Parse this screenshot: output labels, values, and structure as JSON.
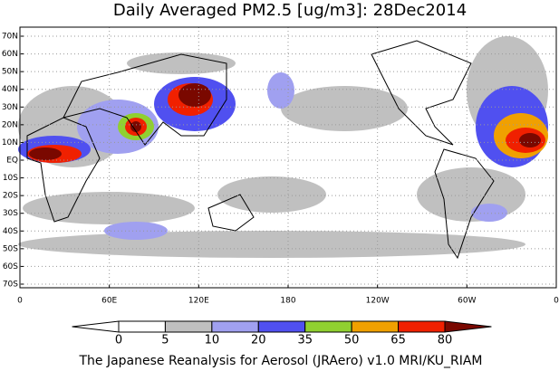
{
  "chart_data": {
    "type": "map",
    "title": "Daily Averaged PM2.5 [ug/m3]: 28Dec2014",
    "lat_ticks": [
      {
        "value": 70,
        "label": "70N"
      },
      {
        "value": 60,
        "label": "60N"
      },
      {
        "value": 50,
        "label": "50N"
      },
      {
        "value": 40,
        "label": "40N"
      },
      {
        "value": 30,
        "label": "30N"
      },
      {
        "value": 20,
        "label": "20N"
      },
      {
        "value": 10,
        "label": "10N"
      },
      {
        "value": 0,
        "label": "EQ"
      },
      {
        "value": -10,
        "label": "10S"
      },
      {
        "value": -20,
        "label": "20S"
      },
      {
        "value": -30,
        "label": "30S"
      },
      {
        "value": -40,
        "label": "40S"
      },
      {
        "value": -50,
        "label": "50S"
      },
      {
        "value": -60,
        "label": "60S"
      },
      {
        "value": -70,
        "label": "70S"
      }
    ],
    "lon_ticks": [
      0,
      {
        "value": 60,
        "label": "60E"
      },
      {
        "value": 120,
        "label": "120E"
      },
      180,
      {
        "value": 240,
        "label": "120W"
      },
      {
        "value": 300,
        "label": "60W"
      },
      {
        "value": 360,
        "label": "0"
      }
    ],
    "grid": true,
    "colorbar": {
      "ticks": [
        0,
        5,
        10,
        20,
        35,
        50,
        65,
        80
      ],
      "colors": [
        "#ffffff",
        "#ffffff",
        "#c0c0c0",
        "#a0a0f0",
        "#5050f0",
        "#90d030",
        "#f0a000",
        "#f02000",
        "#7a0800"
      ]
    },
    "footer": "The Japanese Reanalysis for Aerosol (JRAero) v1.0 MRI/KU_RIAM"
  }
}
